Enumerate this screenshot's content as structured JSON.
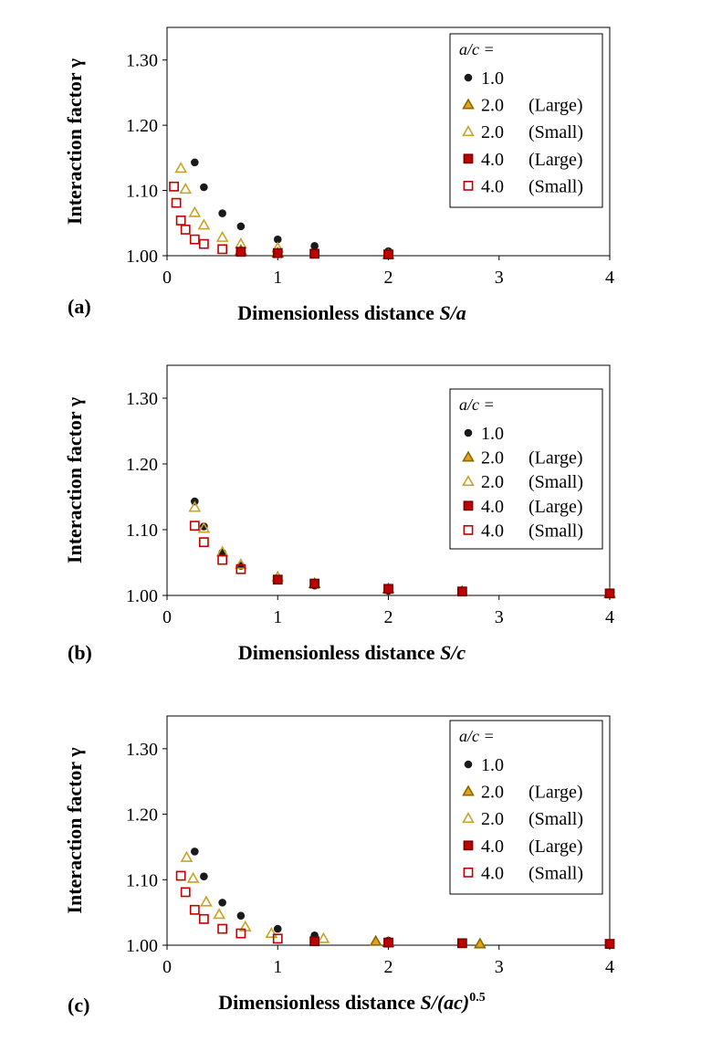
{
  "colors": {
    "circle": "#1a1a1a",
    "tri_large_fill": "#e3a21a",
    "tri_large_edge": "#8a6a00",
    "tri_small_edge": "#c9a227",
    "sq_large_fill": "#c00000",
    "sq_large_edge": "#7a0000",
    "sq_small_edge": "#c00000"
  },
  "chart_data": [
    {
      "type": "scatter",
      "panel_label": "(a)",
      "xlabel": {
        "prefix": "Dimensionless distance ",
        "var": "S/a",
        "sup": ""
      },
      "ylabel": "Interaction factor γ",
      "xlim": [
        0,
        4
      ],
      "ylim": [
        1.0,
        1.35
      ],
      "xticks": [
        "0",
        "1",
        "2",
        "3",
        "4"
      ],
      "yticks": [
        "1.00",
        "1.10",
        "1.20",
        "1.30"
      ],
      "legend": {
        "title": "a/c =",
        "entries": [
          {
            "value": "1.0",
            "note": ""
          },
          {
            "value": "2.0",
            "note": "(Large)"
          },
          {
            "value": "2.0",
            "note": "(Small)"
          },
          {
            "value": "4.0",
            "note": "(Large)"
          },
          {
            "value": "4.0",
            "note": "(Small)"
          }
        ]
      },
      "series": [
        {
          "name": "1.0",
          "marker": "circle",
          "x": [
            0.25,
            0.333,
            0.5,
            0.667,
            1.0,
            1.333,
            2.0
          ],
          "y": [
            1.143,
            1.105,
            1.065,
            1.045,
            1.025,
            1.015,
            1.007
          ]
        },
        {
          "name": "2.0 (Large)",
          "marker": "tri-filled",
          "x": [
            0.667,
            1.0,
            2.0
          ],
          "y": [
            1.008,
            1.004,
            1.002
          ]
        },
        {
          "name": "2.0 (Small)",
          "marker": "tri-open",
          "x": [
            0.125,
            0.167,
            0.25,
            0.333,
            0.5,
            0.667,
            1.0
          ],
          "y": [
            1.134,
            1.102,
            1.066,
            1.047,
            1.028,
            1.018,
            1.012
          ]
        },
        {
          "name": "4.0 (Large)",
          "marker": "square-filled",
          "x": [
            0.667,
            1.0,
            1.333,
            2.0
          ],
          "y": [
            1.006,
            1.004,
            1.003,
            1.002
          ]
        },
        {
          "name": "4.0 (Small)",
          "marker": "square-open",
          "x": [
            0.0625,
            0.0833,
            0.125,
            0.167,
            0.25,
            0.333,
            0.5
          ],
          "y": [
            1.106,
            1.081,
            1.054,
            1.04,
            1.025,
            1.018,
            1.01
          ]
        }
      ]
    },
    {
      "type": "scatter",
      "panel_label": "(b)",
      "xlabel": {
        "prefix": "Dimensionless distance ",
        "var": "S/c",
        "sup": ""
      },
      "ylabel": "Interaction factor γ",
      "xlim": [
        0,
        4
      ],
      "ylim": [
        1.0,
        1.35
      ],
      "xticks": [
        "0",
        "1",
        "2",
        "3",
        "4"
      ],
      "yticks": [
        "1.00",
        "1.10",
        "1.20",
        "1.30"
      ],
      "legend": {
        "title": "a/c =",
        "entries": [
          {
            "value": "1.0",
            "note": ""
          },
          {
            "value": "2.0",
            "note": "(Large)"
          },
          {
            "value": "2.0",
            "note": "(Small)"
          },
          {
            "value": "4.0",
            "note": "(Large)"
          },
          {
            "value": "4.0",
            "note": "(Small)"
          }
        ]
      },
      "series": [
        {
          "name": "1.0",
          "marker": "circle",
          "x": [
            0.25,
            0.333,
            0.5,
            0.667,
            1.0,
            1.333,
            2.0,
            2.667,
            4.0
          ],
          "y": [
            1.143,
            1.105,
            1.065,
            1.045,
            1.025,
            1.015,
            1.007,
            1.005,
            1.003
          ]
        },
        {
          "name": "2.0 (Large)",
          "marker": "tri-filled",
          "x": [
            1.333,
            2.0,
            2.667,
            4.0
          ],
          "y": [
            1.018,
            1.01,
            1.006,
            1.003
          ]
        },
        {
          "name": "2.0 (Small)",
          "marker": "tri-open",
          "x": [
            0.25,
            0.333,
            0.5,
            0.667,
            1.0
          ],
          "y": [
            1.134,
            1.102,
            1.066,
            1.047,
            1.028
          ]
        },
        {
          "name": "4.0 (Large)",
          "marker": "square-filled",
          "x": [
            1.0,
            1.333,
            2.0,
            2.667,
            4.0
          ],
          "y": [
            1.024,
            1.018,
            1.01,
            1.006,
            1.003
          ]
        },
        {
          "name": "4.0 (Small)",
          "marker": "square-open",
          "x": [
            0.25,
            0.333,
            0.5,
            0.667
          ],
          "y": [
            1.106,
            1.081,
            1.054,
            1.04
          ]
        }
      ]
    },
    {
      "type": "scatter",
      "panel_label": "(c)",
      "xlabel": {
        "prefix": "Dimensionless distance ",
        "var": "S/(ac)",
        "sup": "0.5"
      },
      "ylabel": "Interaction factor γ",
      "xlim": [
        0,
        4
      ],
      "ylim": [
        1.0,
        1.35
      ],
      "xticks": [
        "0",
        "1",
        "2",
        "3",
        "4"
      ],
      "yticks": [
        "1.00",
        "1.10",
        "1.20",
        "1.30"
      ],
      "legend": {
        "title": "a/c =",
        "entries": [
          {
            "value": "1.0",
            "note": ""
          },
          {
            "value": "2.0",
            "note": "(Large)"
          },
          {
            "value": "2.0",
            "note": "(Small)"
          },
          {
            "value": "4.0",
            "note": "(Large)"
          },
          {
            "value": "4.0",
            "note": "(Small)"
          }
        ]
      },
      "series": [
        {
          "name": "1.0",
          "marker": "circle",
          "x": [
            0.25,
            0.333,
            0.5,
            0.667,
            1.0,
            1.333,
            2.0
          ],
          "y": [
            1.143,
            1.105,
            1.065,
            1.045,
            1.025,
            1.015,
            1.007
          ]
        },
        {
          "name": "2.0 (Large)",
          "marker": "tri-filled",
          "x": [
            1.886,
            2.0,
            2.828
          ],
          "y": [
            1.006,
            1.004,
            1.002
          ]
        },
        {
          "name": "2.0 (Small)",
          "marker": "tri-open",
          "x": [
            0.177,
            0.236,
            0.354,
            0.471,
            0.707,
            0.943,
            1.414
          ],
          "y": [
            1.134,
            1.102,
            1.066,
            1.047,
            1.028,
            1.018,
            1.01
          ]
        },
        {
          "name": "4.0 (Large)",
          "marker": "square-filled",
          "x": [
            1.333,
            2.0,
            2.667,
            4.0
          ],
          "y": [
            1.006,
            1.004,
            1.003,
            1.002
          ]
        },
        {
          "name": "4.0 (Small)",
          "marker": "square-open",
          "x": [
            0.125,
            0.167,
            0.25,
            0.333,
            0.5,
            0.667,
            1.0
          ],
          "y": [
            1.106,
            1.081,
            1.054,
            1.04,
            1.025,
            1.018,
            1.01
          ]
        }
      ]
    }
  ]
}
